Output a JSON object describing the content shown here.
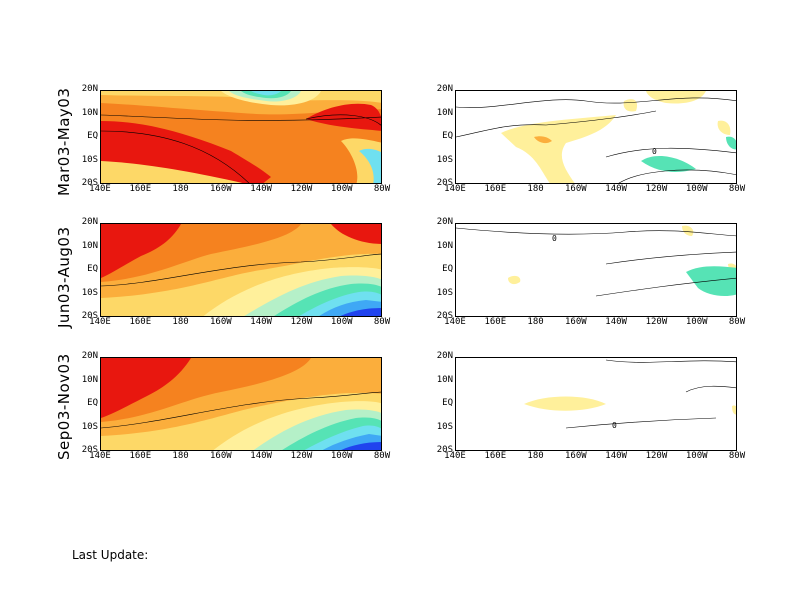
{
  "rows": [
    {
      "title": "Mar03-May03"
    },
    {
      "title": "Jun03-Aug03"
    },
    {
      "title": "Sep03-Nov03"
    }
  ],
  "lat_labels": [
    "20N",
    "10N",
    "EQ",
    "10S",
    "20S"
  ],
  "lon_labels": [
    "140E",
    "160E",
    "180",
    "160W",
    "140W",
    "120W",
    "100W",
    "80W"
  ],
  "contour_label": "0",
  "footer": {
    "label": "Last Update:"
  },
  "colors": {
    "red": "#e8170f",
    "dark_orange": "#f5821f",
    "orange": "#fbae3c",
    "light_orange": "#fdd867",
    "yellow": "#fff09b",
    "light_yellow": "#fdf5b8",
    "white": "#ffffff",
    "pale_green": "#b5f0c8",
    "aqua": "#56e3b5",
    "cyan": "#6fe0f0",
    "light_blue": "#3fa8f5",
    "blue": "#2043ee",
    "dark_blue": "#3a14c8"
  }
}
